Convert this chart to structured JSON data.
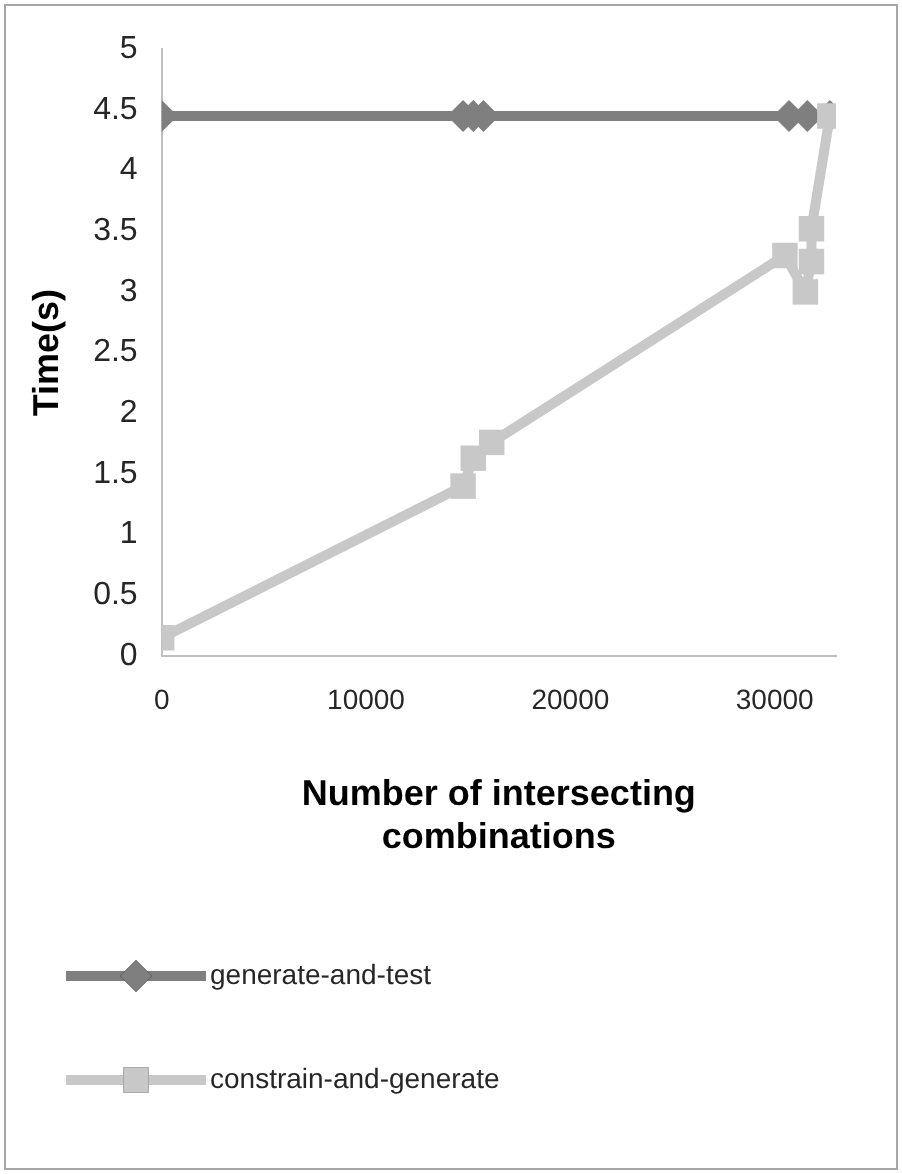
{
  "chart_data": {
    "type": "line",
    "xlabel": "Number of intersecting combinations",
    "ylabel": "Time(s)",
    "xlim": [
      0,
      33000
    ],
    "xticks": [
      0,
      10000,
      20000,
      30000
    ],
    "ylim": [
      0,
      5
    ],
    "yticks": [
      0,
      0.5,
      1,
      1.5,
      2,
      2.5,
      3,
      3.5,
      4,
      4.5,
      5
    ],
    "grid": false,
    "legend": "bottom",
    "line_style": "solid",
    "series": [
      {
        "name": "generate-and-test",
        "color": "#7f7f7f",
        "marker": "diamond",
        "x": [
          0,
          14750,
          15250,
          15750,
          30700,
          31600,
          32700
        ],
        "values": [
          4.45,
          4.45,
          4.45,
          4.45,
          4.45,
          4.45,
          4.45
        ]
      },
      {
        "name": "constrain-and-generate",
        "color": "#c8c8c8",
        "marker": "square",
        "x": [
          0,
          14750,
          15250,
          16150,
          30500,
          31500,
          31800,
          31800,
          32700
        ],
        "values": [
          0.15,
          1.4,
          1.63,
          1.76,
          3.3,
          3.0,
          3.25,
          3.52,
          4.45
        ]
      }
    ]
  }
}
